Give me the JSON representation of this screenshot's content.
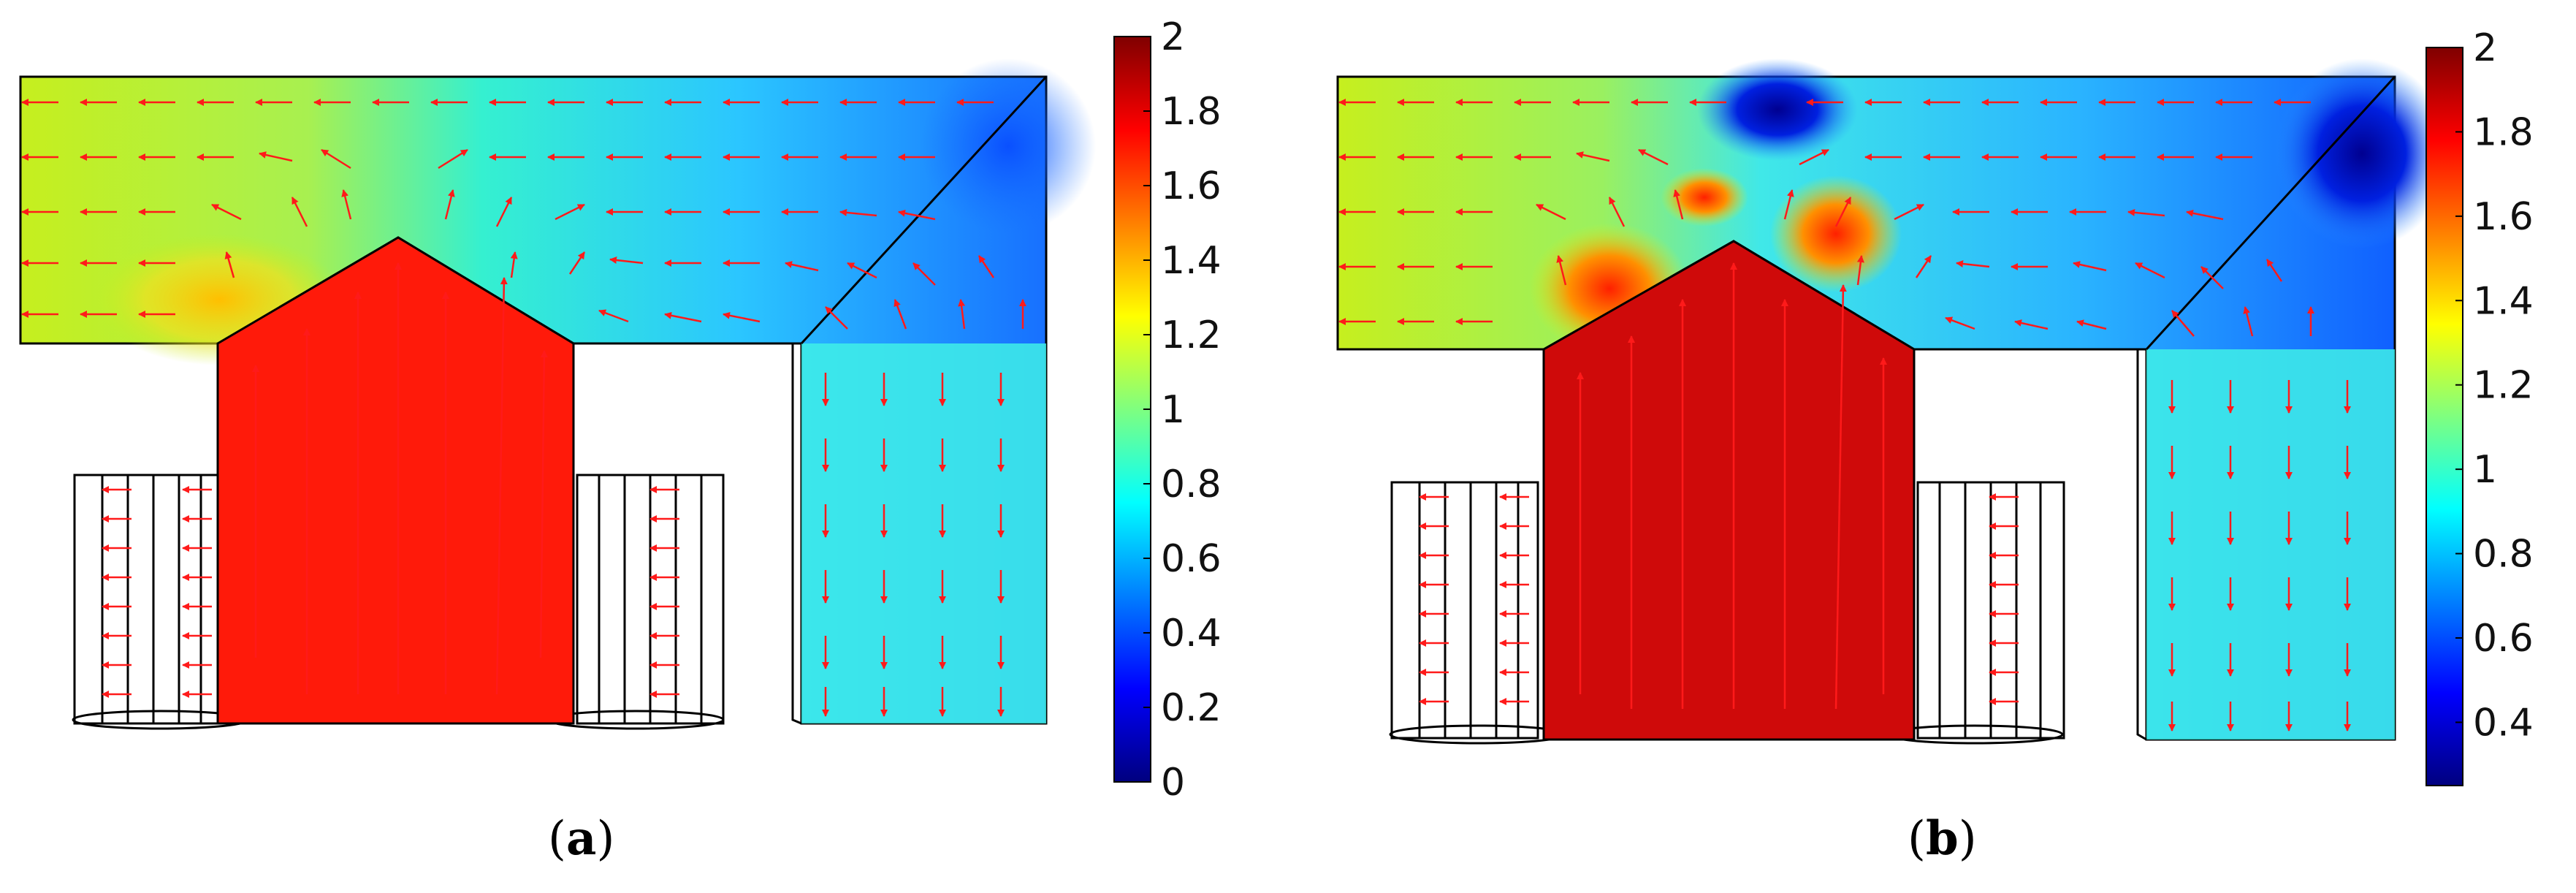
{
  "panels": [
    {
      "id": "a",
      "label_open": "(",
      "label_letter": "a",
      "label_close": ")",
      "colorbar": {
        "min": 0,
        "max": 2,
        "ticks": [
          "0",
          "0.2",
          "0.4",
          "0.6",
          "0.8",
          "1",
          "1.2",
          "1.4",
          "1.6",
          "1.8",
          "2"
        ]
      },
      "pole_level": 1.75
    },
    {
      "id": "b",
      "label_open": "(",
      "label_letter": "b",
      "label_close": ")",
      "colorbar": {
        "min": 0.25,
        "max": 2,
        "ticks": [
          "0.4",
          "0.6",
          "0.8",
          "1",
          "1.2",
          "1.4",
          "1.6",
          "1.8",
          "2"
        ]
      },
      "pole_level": 1.95
    }
  ],
  "colors": {
    "arrow": "#ff1a1a",
    "outline": "#000000",
    "colormap": [
      "#00007f",
      "#0000ff",
      "#007fff",
      "#00ffff",
      "#7fff7f",
      "#ffff00",
      "#ff7f00",
      "#ff0000",
      "#7f0000"
    ]
  }
}
